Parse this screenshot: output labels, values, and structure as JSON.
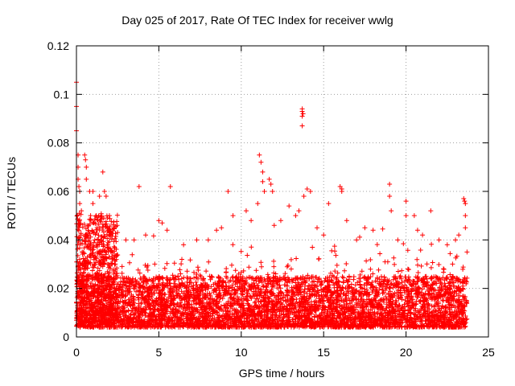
{
  "chart_data": {
    "type": "scatter",
    "title": "Day 025 of 2017, Rate Of TEC Index for receiver wwlg",
    "xlabel": "GPS time / hours",
    "ylabel": "ROTI / TECUs",
    "xlim": [
      0,
      25
    ],
    "ylim": [
      0,
      0.12
    ],
    "x_ticks": [
      0,
      5,
      10,
      15,
      20,
      25
    ],
    "y_ticks": [
      0,
      0.02,
      0.04,
      0.06,
      0.08,
      0.1,
      0.12
    ],
    "x_tick_labels": [
      "0",
      "5",
      "10",
      "15",
      "20",
      "25"
    ],
    "y_tick_labels": [
      "0",
      "0.02",
      "0.04",
      "0.06",
      "0.08",
      "0.1",
      "0.12"
    ],
    "grid": true,
    "marker": "+",
    "series": [
      {
        "name": "ROTI",
        "color": "#ff0000",
        "x_range": [
          0,
          23.7
        ],
        "typical_range": [
          0.004,
          0.025
        ],
        "points": [
          [
            0.0,
            0.105
          ],
          [
            0.0,
            0.095
          ],
          [
            0.0,
            0.085
          ],
          [
            0.1,
            0.075
          ],
          [
            0.1,
            0.07
          ],
          [
            0.1,
            0.065
          ],
          [
            0.15,
            0.062
          ],
          [
            0.2,
            0.06
          ],
          [
            0.2,
            0.055
          ],
          [
            0.3,
            0.052
          ],
          [
            0.5,
            0.075
          ],
          [
            0.55,
            0.073
          ],
          [
            0.6,
            0.07
          ],
          [
            0.6,
            0.065
          ],
          [
            0.8,
            0.06
          ],
          [
            1.0,
            0.06
          ],
          [
            1.0,
            0.055
          ],
          [
            1.2,
            0.05
          ],
          [
            1.4,
            0.058
          ],
          [
            1.5,
            0.05
          ],
          [
            1.6,
            0.068
          ],
          [
            1.7,
            0.06
          ],
          [
            1.8,
            0.058
          ],
          [
            2.0,
            0.05
          ],
          [
            2.3,
            0.045
          ],
          [
            3.0,
            0.04
          ],
          [
            3.5,
            0.04
          ],
          [
            3.8,
            0.062
          ],
          [
            4.2,
            0.042
          ],
          [
            5.0,
            0.048
          ],
          [
            5.2,
            0.047
          ],
          [
            5.5,
            0.044
          ],
          [
            5.7,
            0.062
          ],
          [
            6.5,
            0.038
          ],
          [
            7.3,
            0.04
          ],
          [
            8.0,
            0.04
          ],
          [
            8.5,
            0.044
          ],
          [
            8.8,
            0.045
          ],
          [
            9.2,
            0.06
          ],
          [
            9.5,
            0.05
          ],
          [
            10.3,
            0.052
          ],
          [
            10.6,
            0.048
          ],
          [
            11.0,
            0.055
          ],
          [
            11.1,
            0.075
          ],
          [
            11.2,
            0.072
          ],
          [
            11.3,
            0.068
          ],
          [
            11.3,
            0.064
          ],
          [
            11.4,
            0.06
          ],
          [
            11.7,
            0.065
          ],
          [
            11.8,
            0.063
          ],
          [
            11.9,
            0.06
          ],
          [
            12.0,
            0.046
          ],
          [
            12.4,
            0.048
          ],
          [
            12.9,
            0.054
          ],
          [
            13.3,
            0.05
          ],
          [
            13.5,
            0.052
          ],
          [
            13.7,
            0.094
          ],
          [
            13.7,
            0.093
          ],
          [
            13.75,
            0.092
          ],
          [
            13.7,
            0.091
          ],
          [
            13.7,
            0.087
          ],
          [
            13.8,
            0.058
          ],
          [
            14.0,
            0.061
          ],
          [
            14.2,
            0.06
          ],
          [
            14.6,
            0.045
          ],
          [
            15.0,
            0.042
          ],
          [
            15.3,
            0.055
          ],
          [
            16.0,
            0.062
          ],
          [
            16.1,
            0.061
          ],
          [
            16.1,
            0.06
          ],
          [
            16.4,
            0.048
          ],
          [
            17.0,
            0.04
          ],
          [
            17.5,
            0.045
          ],
          [
            18.0,
            0.044
          ],
          [
            19.0,
            0.063
          ],
          [
            19.0,
            0.058
          ],
          [
            19.1,
            0.052
          ],
          [
            19.5,
            0.04
          ],
          [
            20.0,
            0.056
          ],
          [
            20.0,
            0.05
          ],
          [
            20.5,
            0.05
          ],
          [
            20.7,
            0.044
          ],
          [
            21.0,
            0.042
          ],
          [
            21.5,
            0.052
          ],
          [
            22.0,
            0.04
          ],
          [
            22.5,
            0.038
          ],
          [
            23.0,
            0.04
          ],
          [
            23.2,
            0.042
          ],
          [
            23.5,
            0.057
          ],
          [
            23.55,
            0.056
          ],
          [
            23.6,
            0.055
          ],
          [
            23.6,
            0.05
          ],
          [
            23.6,
            0.045
          ],
          [
            23.7,
            0.035
          ]
        ]
      }
    ]
  }
}
